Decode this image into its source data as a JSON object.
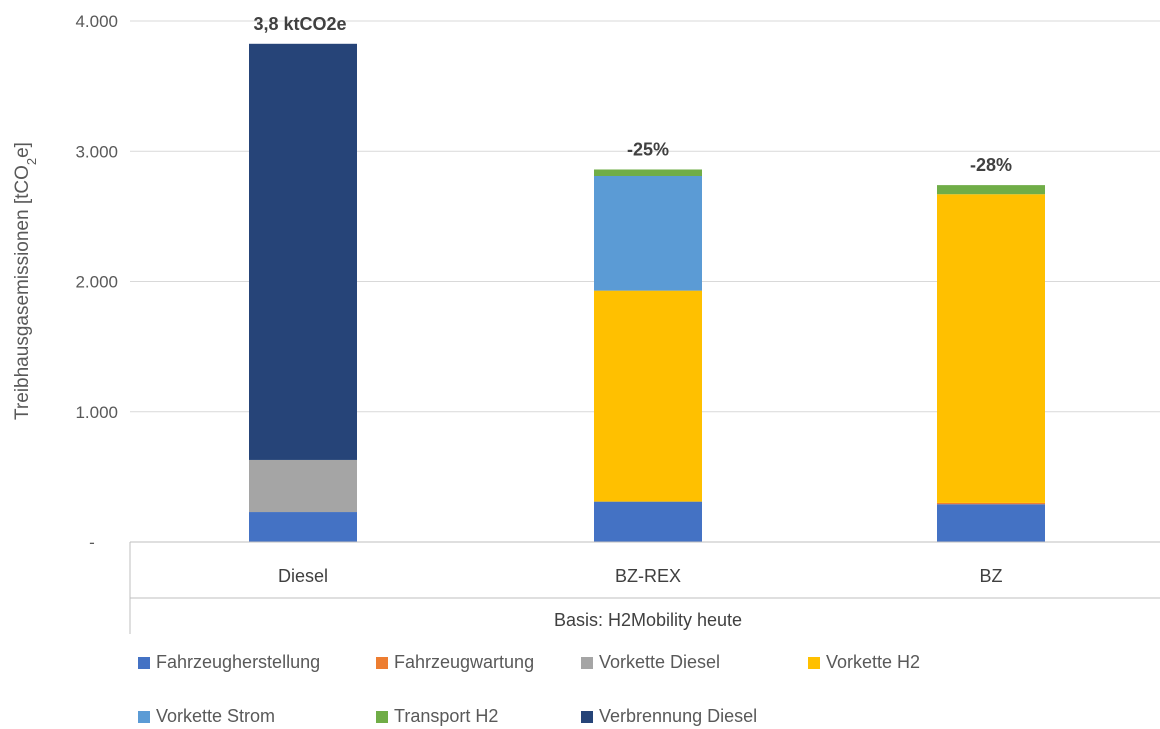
{
  "chart_data": {
    "type": "stacked-bar",
    "categories": [
      "Diesel",
      "BZ-REX",
      "BZ"
    ],
    "group_label": "Basis: H2Mobility heute",
    "ylabel_parts": [
      "Treibhausgasemissionen [tCO",
      "2",
      "e]"
    ],
    "ylim": [
      0,
      4000
    ],
    "yticks": [
      0,
      1000,
      2000,
      3000,
      4000
    ],
    "ytick_labels": [
      "-",
      "1.000",
      "2.000",
      "3.000",
      "4.000"
    ],
    "grid": true,
    "legend_position": "bottom",
    "series": [
      {
        "name": "Fahrzeugherstellung",
        "color": "#4472C4",
        "values": [
          230,
          310,
          290
        ]
      },
      {
        "name": "Fahrzeugwartung",
        "color": "#ED7D31",
        "values": [
          0,
          0,
          10
        ]
      },
      {
        "name": "Vorkette Diesel",
        "color": "#A5A5A5",
        "values": [
          400,
          0,
          0
        ]
      },
      {
        "name": "Vorkette H2",
        "color": "#FFC000",
        "values": [
          0,
          1620,
          2370
        ]
      },
      {
        "name": "Vorkette Strom",
        "color": "#5B9BD5",
        "values": [
          0,
          880,
          0
        ]
      },
      {
        "name": "Transport H2",
        "color": "#70AD47",
        "values": [
          0,
          50,
          70
        ]
      },
      {
        "name": "Verbrennung Diesel",
        "color": "#264478",
        "values": [
          3195,
          0,
          0
        ]
      }
    ],
    "annotations": [
      "3,8 ktCO2e",
      "-25%",
      "-28%"
    ]
  }
}
